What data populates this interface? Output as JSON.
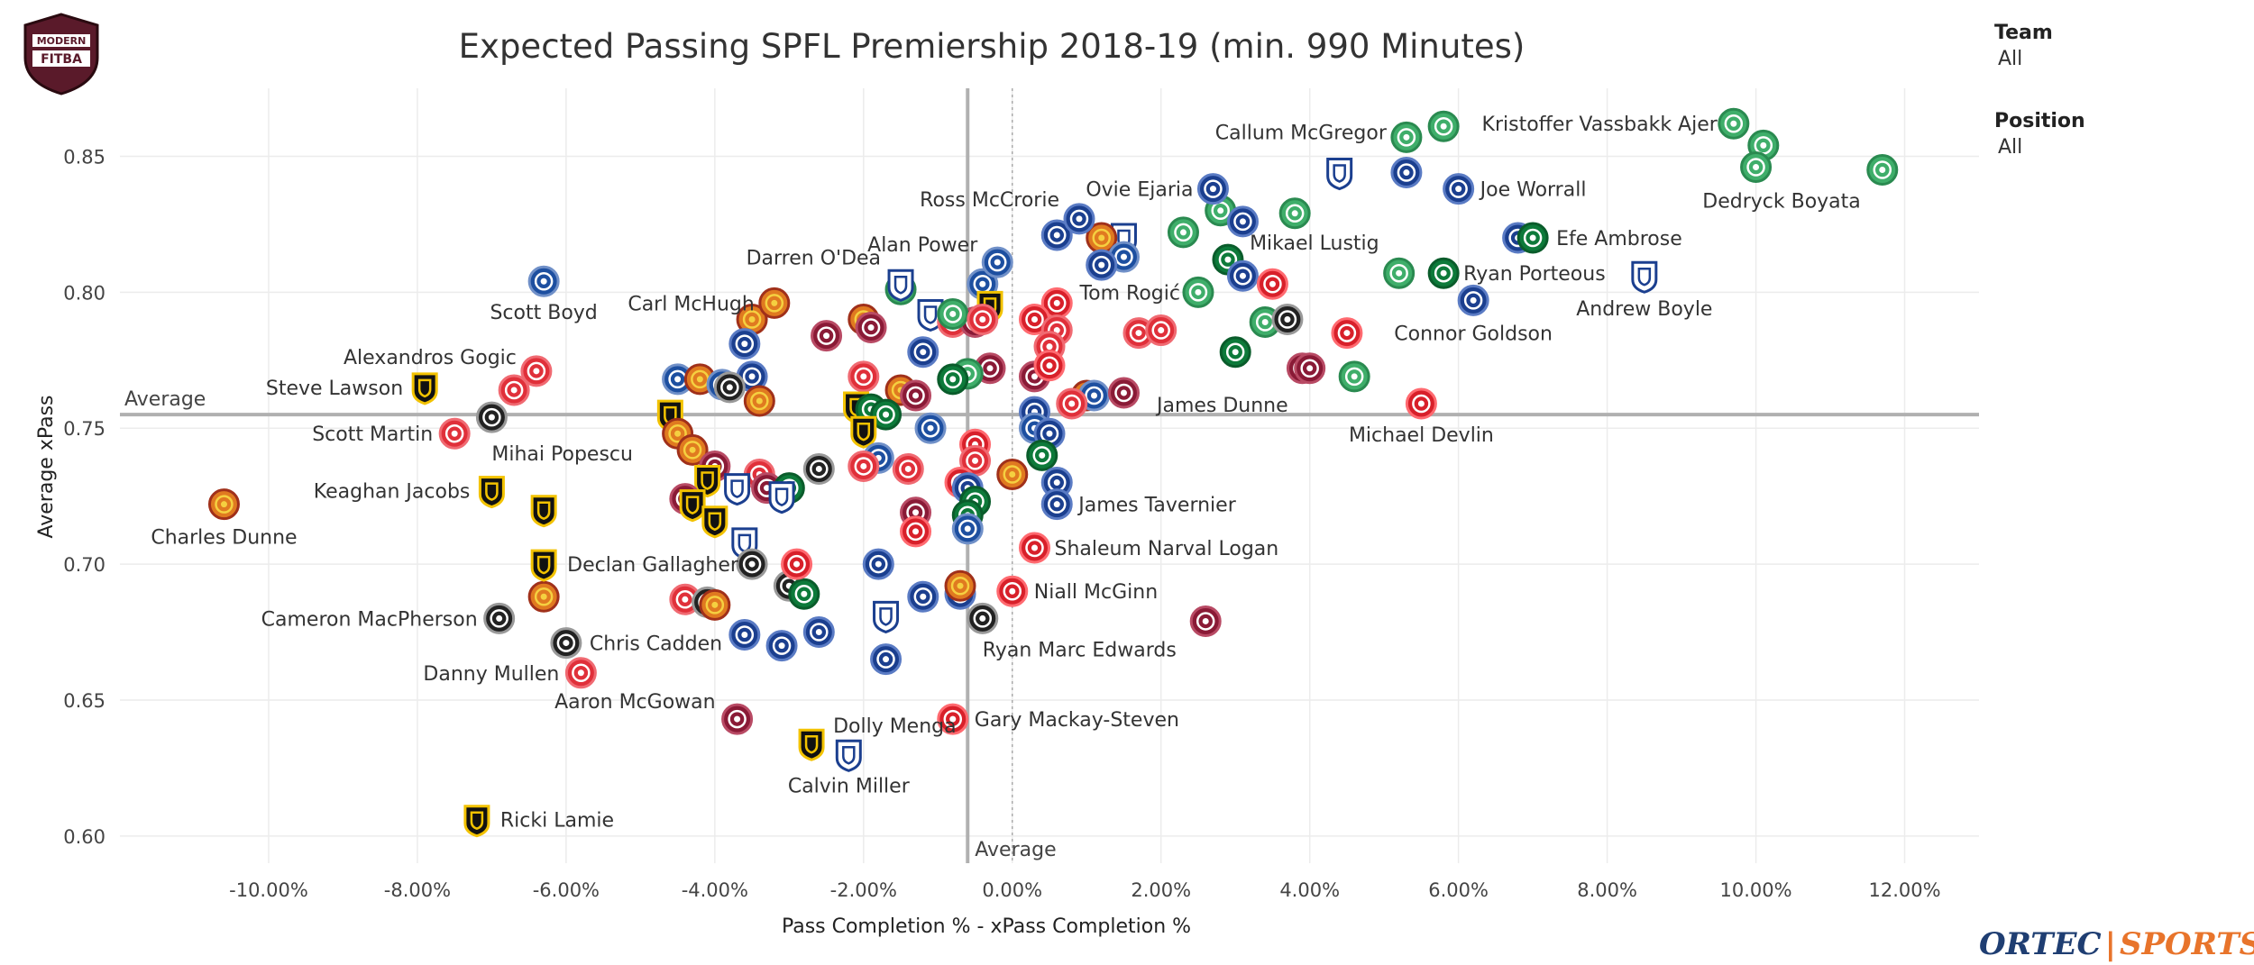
{
  "chart_data": {
    "type": "scatter",
    "title": "Expected Passing SPFL Premiership 2018-19 (min. 990 Minutes)",
    "xlabel": "Pass Completion % - xPass Completion %",
    "ylabel": "Average xPass",
    "xlim": [
      -12.0,
      13.0
    ],
    "ylim": [
      0.59,
      0.875
    ],
    "x_ticks": [
      "-10.00%",
      "-8.00%",
      "-6.00%",
      "-4.00%",
      "-2.00%",
      "0.00%",
      "2.00%",
      "4.00%",
      "6.00%",
      "8.00%",
      "10.00%",
      "12.00%"
    ],
    "x_tick_values": [
      -10,
      -8,
      -6,
      -4,
      -2,
      0,
      2,
      4,
      6,
      8,
      10,
      12
    ],
    "y_ticks": [
      "0.60",
      "0.65",
      "0.70",
      "0.75",
      "0.80",
      "0.85"
    ],
    "y_tick_values": [
      0.6,
      0.65,
      0.7,
      0.75,
      0.8,
      0.85
    ],
    "average_x": -0.6,
    "average_y": 0.755,
    "average_label": "Average",
    "labeled_points": [
      {
        "name": "Kristoffer Vassbakk Ajer",
        "x": 9.7,
        "y": 0.862,
        "team": "celtic"
      },
      {
        "name": "Dedryck Boyata",
        "x": 11.7,
        "y": 0.845,
        "team": "celtic"
      },
      {
        "name": "Callum McGregor",
        "x": 5.3,
        "y": 0.857,
        "team": "celtic"
      },
      {
        "name": "Joe Worrall",
        "x": 6.0,
        "y": 0.838,
        "team": "rangers"
      },
      {
        "name": "Efe Ambrose",
        "x": 7.0,
        "y": 0.82,
        "team": "hibernian"
      },
      {
        "name": "Mikael Lustig",
        "x": 5.2,
        "y": 0.807,
        "team": "celtic"
      },
      {
        "name": "Ryan Porteous",
        "x": 5.8,
        "y": 0.807,
        "team": "hibernian"
      },
      {
        "name": "Andrew Boyle",
        "x": 8.5,
        "y": 0.806,
        "team": "dundee"
      },
      {
        "name": "Connor Goldson",
        "x": 6.2,
        "y": 0.797,
        "team": "rangers"
      },
      {
        "name": "Ovie Ejaria",
        "x": 2.7,
        "y": 0.838,
        "team": "rangers"
      },
      {
        "name": "Ross McCrorie",
        "x": 0.9,
        "y": 0.827,
        "team": "rangers"
      },
      {
        "name": "Alan Power",
        "x": -0.2,
        "y": 0.811,
        "team": "kilmarnock"
      },
      {
        "name": "Darren O'Dea",
        "x": -1.5,
        "y": 0.803,
        "team": "dundee"
      },
      {
        "name": "Tom Rogić",
        "x": 2.5,
        "y": 0.8,
        "team": "celtic"
      },
      {
        "name": "Carl McHugh",
        "x": -3.2,
        "y": 0.796,
        "team": "motherwell"
      },
      {
        "name": "Scott Boyd",
        "x": -6.3,
        "y": 0.804,
        "team": "kilmarnock"
      },
      {
        "name": "Alexandros Gogic",
        "x": -6.4,
        "y": 0.771,
        "team": "hamilton"
      },
      {
        "name": "Steve Lawson",
        "x": -7.9,
        "y": 0.765,
        "team": "livingston"
      },
      {
        "name": "Scott Martin",
        "x": -7.5,
        "y": 0.748,
        "team": "hamilton"
      },
      {
        "name": "Mihai Popescu",
        "x": -7.0,
        "y": 0.754,
        "team": "stmirren"
      },
      {
        "name": "Keaghan Jacobs",
        "x": -7.0,
        "y": 0.727,
        "team": "livingston"
      },
      {
        "name": "Charles Dunne",
        "x": -10.6,
        "y": 0.722,
        "team": "motherwell"
      },
      {
        "name": "James Dunne",
        "x": 4.0,
        "y": 0.772,
        "team": "hearts"
      },
      {
        "name": "Michael Devlin",
        "x": 5.5,
        "y": 0.759,
        "team": "aberdeen"
      },
      {
        "name": "James Tavernier",
        "x": 0.6,
        "y": 0.722,
        "team": "rangers"
      },
      {
        "name": "Shaleum Narval Logan",
        "x": 0.3,
        "y": 0.706,
        "team": "aberdeen"
      },
      {
        "name": "Niall McGinn",
        "x": 0.0,
        "y": 0.69,
        "team": "aberdeen"
      },
      {
        "name": "Ryan Marc Edwards",
        "x": -0.4,
        "y": 0.68,
        "team": "stmirren"
      },
      {
        "name": "Declan Gallagher",
        "x": -6.3,
        "y": 0.7,
        "team": "livingston"
      },
      {
        "name": "Cameron MacPherson",
        "x": -6.9,
        "y": 0.68,
        "team": "stmirren"
      },
      {
        "name": "Chris Cadden",
        "x": -6.0,
        "y": 0.671,
        "team": "stmirren"
      },
      {
        "name": "Danny Mullen",
        "x": -5.8,
        "y": 0.66,
        "team": "hamilton"
      },
      {
        "name": "Aaron McGowan",
        "x": -3.7,
        "y": 0.643,
        "team": "hearts"
      },
      {
        "name": "Dolly Menga",
        "x": -2.7,
        "y": 0.634,
        "team": "livingston"
      },
      {
        "name": "Gary Mackay-Steven",
        "x": -0.8,
        "y": 0.643,
        "team": "aberdeen"
      },
      {
        "name": "Calvin Miller",
        "x": -2.2,
        "y": 0.63,
        "team": "dundee"
      },
      {
        "name": "Ricki Lamie",
        "x": -7.2,
        "y": 0.606,
        "team": "livingston"
      }
    ],
    "other_points": [
      {
        "x": 5.8,
        "y": 0.861,
        "team": "celtic"
      },
      {
        "x": 10.1,
        "y": 0.854,
        "team": "celtic"
      },
      {
        "x": 10.0,
        "y": 0.846,
        "team": "celtic"
      },
      {
        "x": 5.3,
        "y": 0.844,
        "team": "rangers"
      },
      {
        "x": 4.4,
        "y": 0.844,
        "team": "dundee"
      },
      {
        "x": 2.8,
        "y": 0.83,
        "team": "celtic"
      },
      {
        "x": 3.8,
        "y": 0.829,
        "team": "celtic"
      },
      {
        "x": 3.1,
        "y": 0.826,
        "team": "rangers"
      },
      {
        "x": 2.3,
        "y": 0.822,
        "team": "celtic"
      },
      {
        "x": 1.5,
        "y": 0.82,
        "team": "dundee"
      },
      {
        "x": 1.2,
        "y": 0.82,
        "team": "motherwell"
      },
      {
        "x": 0.6,
        "y": 0.821,
        "team": "rangers"
      },
      {
        "x": 6.8,
        "y": 0.82,
        "team": "rangers"
      },
      {
        "x": 2.9,
        "y": 0.812,
        "team": "hibernian"
      },
      {
        "x": 1.5,
        "y": 0.813,
        "team": "kilmarnock"
      },
      {
        "x": 1.2,
        "y": 0.81,
        "team": "rangers"
      },
      {
        "x": 3.1,
        "y": 0.806,
        "team": "rangers"
      },
      {
        "x": 3.5,
        "y": 0.803,
        "team": "aberdeen"
      },
      {
        "x": -0.4,
        "y": 0.803,
        "team": "kilmarnock"
      },
      {
        "x": -1.5,
        "y": 0.801,
        "team": "celtic"
      },
      {
        "x": 0.6,
        "y": 0.796,
        "team": "aberdeen"
      },
      {
        "x": -0.3,
        "y": 0.795,
        "team": "livingston"
      },
      {
        "x": -1.1,
        "y": 0.792,
        "team": "dundee"
      },
      {
        "x": 0.3,
        "y": 0.79,
        "team": "aberdeen"
      },
      {
        "x": -0.8,
        "y": 0.789,
        "team": "hamilton"
      },
      {
        "x": -0.5,
        "y": 0.789,
        "team": "hearts"
      },
      {
        "x": -0.8,
        "y": 0.792,
        "team": "celtic"
      },
      {
        "x": -0.4,
        "y": 0.79,
        "team": "hamilton"
      },
      {
        "x": -3.5,
        "y": 0.79,
        "team": "motherwell"
      },
      {
        "x": -2.0,
        "y": 0.79,
        "team": "motherwell"
      },
      {
        "x": -1.9,
        "y": 0.787,
        "team": "hearts"
      },
      {
        "x": 0.6,
        "y": 0.786,
        "team": "hamilton"
      },
      {
        "x": 1.7,
        "y": 0.785,
        "team": "hamilton"
      },
      {
        "x": 2.0,
        "y": 0.786,
        "team": "hamilton"
      },
      {
        "x": 3.4,
        "y": 0.789,
        "team": "celtic"
      },
      {
        "x": 3.7,
        "y": 0.79,
        "team": "stmirren"
      },
      {
        "x": 4.5,
        "y": 0.785,
        "team": "aberdeen"
      },
      {
        "x": 0.5,
        "y": 0.78,
        "team": "hamilton"
      },
      {
        "x": -2.5,
        "y": 0.784,
        "team": "hearts"
      },
      {
        "x": -3.6,
        "y": 0.781,
        "team": "rangers"
      },
      {
        "x": -1.2,
        "y": 0.778,
        "team": "rangers"
      },
      {
        "x": 3.0,
        "y": 0.778,
        "team": "hibernian"
      },
      {
        "x": 3.9,
        "y": 0.772,
        "team": "hearts"
      },
      {
        "x": 4.6,
        "y": 0.769,
        "team": "celtic"
      },
      {
        "x": -0.3,
        "y": 0.772,
        "team": "hearts"
      },
      {
        "x": 0.3,
        "y": 0.769,
        "team": "hearts"
      },
      {
        "x": 0.5,
        "y": 0.773,
        "team": "aberdeen"
      },
      {
        "x": -0.6,
        "y": 0.77,
        "team": "celtic"
      },
      {
        "x": -0.8,
        "y": 0.768,
        "team": "hibernian"
      },
      {
        "x": -2.0,
        "y": 0.769,
        "team": "hamilton"
      },
      {
        "x": -3.5,
        "y": 0.769,
        "team": "rangers"
      },
      {
        "x": -4.5,
        "y": 0.768,
        "team": "kilmarnock"
      },
      {
        "x": -4.2,
        "y": 0.768,
        "team": "motherwell"
      },
      {
        "x": -3.9,
        "y": 0.766,
        "team": "kilmarnock"
      },
      {
        "x": -3.8,
        "y": 0.765,
        "team": "stmirren"
      },
      {
        "x": -1.5,
        "y": 0.764,
        "team": "motherwell"
      },
      {
        "x": -6.7,
        "y": 0.764,
        "team": "hamilton"
      },
      {
        "x": -3.4,
        "y": 0.76,
        "team": "motherwell"
      },
      {
        "x": -1.3,
        "y": 0.762,
        "team": "hearts"
      },
      {
        "x": -2.1,
        "y": 0.758,
        "team": "livingston"
      },
      {
        "x": -1.9,
        "y": 0.757,
        "team": "hibernian"
      },
      {
        "x": -1.7,
        "y": 0.755,
        "team": "hibernian"
      },
      {
        "x": 1.0,
        "y": 0.762,
        "team": "motherwell"
      },
      {
        "x": 1.1,
        "y": 0.762,
        "team": "kilmarnock"
      },
      {
        "x": 1.5,
        "y": 0.763,
        "team": "hearts"
      },
      {
        "x": 0.8,
        "y": 0.759,
        "team": "hamilton"
      },
      {
        "x": 0.3,
        "y": 0.756,
        "team": "rangers"
      },
      {
        "x": -4.6,
        "y": 0.755,
        "team": "livingston"
      },
      {
        "x": -1.1,
        "y": 0.75,
        "team": "kilmarnock"
      },
      {
        "x": -2.0,
        "y": 0.749,
        "team": "livingston"
      },
      {
        "x": 0.3,
        "y": 0.75,
        "team": "kilmarnock"
      },
      {
        "x": 0.5,
        "y": 0.748,
        "team": "rangers"
      },
      {
        "x": -4.5,
        "y": 0.748,
        "team": "motherwell"
      },
      {
        "x": -4.3,
        "y": 0.742,
        "team": "motherwell"
      },
      {
        "x": -0.5,
        "y": 0.744,
        "team": "aberdeen"
      },
      {
        "x": 0.4,
        "y": 0.74,
        "team": "hibernian"
      },
      {
        "x": -1.8,
        "y": 0.739,
        "team": "kilmarnock"
      },
      {
        "x": -2.0,
        "y": 0.736,
        "team": "hamilton"
      },
      {
        "x": -1.4,
        "y": 0.735,
        "team": "hamilton"
      },
      {
        "x": -0.5,
        "y": 0.738,
        "team": "hamilton"
      },
      {
        "x": -4.0,
        "y": 0.736,
        "team": "hearts"
      },
      {
        "x": -2.6,
        "y": 0.735,
        "team": "stmirren"
      },
      {
        "x": -3.4,
        "y": 0.733,
        "team": "hamilton"
      },
      {
        "x": -3.3,
        "y": 0.728,
        "team": "hearts"
      },
      {
        "x": -3.0,
        "y": 0.728,
        "team": "hibernian"
      },
      {
        "x": -4.1,
        "y": 0.731,
        "team": "livingston"
      },
      {
        "x": -3.7,
        "y": 0.728,
        "team": "dundee"
      },
      {
        "x": -3.1,
        "y": 0.725,
        "team": "dundee"
      },
      {
        "x": 0.0,
        "y": 0.733,
        "team": "motherwell"
      },
      {
        "x": 0.6,
        "y": 0.73,
        "team": "rangers"
      },
      {
        "x": -0.7,
        "y": 0.73,
        "team": "aberdeen"
      },
      {
        "x": -0.6,
        "y": 0.728,
        "team": "rangers"
      },
      {
        "x": -4.4,
        "y": 0.724,
        "team": "hearts"
      },
      {
        "x": -4.3,
        "y": 0.722,
        "team": "livingston"
      },
      {
        "x": -4.0,
        "y": 0.716,
        "team": "livingston"
      },
      {
        "x": -6.3,
        "y": 0.72,
        "team": "livingston"
      },
      {
        "x": -1.3,
        "y": 0.719,
        "team": "hearts"
      },
      {
        "x": -0.5,
        "y": 0.723,
        "team": "hibernian"
      },
      {
        "x": -0.6,
        "y": 0.718,
        "team": "hibernian"
      },
      {
        "x": -1.3,
        "y": 0.712,
        "team": "aberdeen"
      },
      {
        "x": -0.6,
        "y": 0.713,
        "team": "kilmarnock"
      },
      {
        "x": -3.6,
        "y": 0.708,
        "team": "dundee"
      },
      {
        "x": -3.5,
        "y": 0.7,
        "team": "stmirren"
      },
      {
        "x": -3.0,
        "y": 0.692,
        "team": "stmirren"
      },
      {
        "x": -2.8,
        "y": 0.689,
        "team": "hibernian"
      },
      {
        "x": -2.9,
        "y": 0.7,
        "team": "aberdeen"
      },
      {
        "x": -1.8,
        "y": 0.7,
        "team": "rangers"
      },
      {
        "x": -4.4,
        "y": 0.687,
        "team": "hamilton"
      },
      {
        "x": -4.1,
        "y": 0.686,
        "team": "stmirren"
      },
      {
        "x": -4.0,
        "y": 0.685,
        "team": "motherwell"
      },
      {
        "x": -6.3,
        "y": 0.688,
        "team": "motherwell"
      },
      {
        "x": -1.2,
        "y": 0.688,
        "team": "rangers"
      },
      {
        "x": -0.7,
        "y": 0.689,
        "team": "rangers"
      },
      {
        "x": -0.7,
        "y": 0.692,
        "team": "motherwell"
      },
      {
        "x": -1.7,
        "y": 0.681,
        "team": "dundee"
      },
      {
        "x": -3.6,
        "y": 0.674,
        "team": "rangers"
      },
      {
        "x": -3.1,
        "y": 0.67,
        "team": "rangers"
      },
      {
        "x": -2.6,
        "y": 0.675,
        "team": "rangers"
      },
      {
        "x": -1.7,
        "y": 0.665,
        "team": "rangers"
      },
      {
        "x": 2.6,
        "y": 0.679,
        "team": "hearts"
      }
    ]
  },
  "panel": {
    "team_label": "Team",
    "team_value": "All",
    "position_label": "Position",
    "position_value": "All"
  },
  "logos": {
    "left_line1": "MODERN",
    "left_line2": "FITBA",
    "brand_main": "ORTEC",
    "brand_sub": "SPORTS"
  },
  "team_colors": {
    "celtic": {
      "bg": "#3fae6a",
      "ring": "#2a8a50",
      "inner": "#ffffff",
      "kind": "circle"
    },
    "rangers": {
      "bg": "#1b3f8f",
      "ring": "#5a7bc4",
      "inner": "#ffffff",
      "kind": "circle"
    },
    "hibernian": {
      "bg": "#0d7a3a",
      "ring": "#0a5c2b",
      "inner": "#ffffff",
      "kind": "circle"
    },
    "hearts": {
      "bg": "#8a1a36",
      "ring": "#b84a64",
      "inner": "#ffffff",
      "kind": "circle"
    },
    "hamilton": {
      "bg": "#e0303a",
      "ring": "#f06a72",
      "inner": "#ffffff",
      "kind": "circle"
    },
    "aberdeen": {
      "bg": "#d8202a",
      "ring": "#ff6a70",
      "inner": "#ffffff",
      "kind": "circle"
    },
    "motherwell": {
      "bg": "#e07a20",
      "ring": "#a0301a",
      "inner": "#f5d040",
      "kind": "circle"
    },
    "kilmarnock": {
      "bg": "#1d4fa0",
      "ring": "#7090c8",
      "inner": "#ffffff",
      "kind": "circle"
    },
    "stmirren": {
      "bg": "#222222",
      "ring": "#999999",
      "inner": "#ffffff",
      "kind": "circle"
    },
    "dundee": {
      "bg": "#ffffff",
      "ring": "#1b3f8f",
      "inner": "#1b3f8f",
      "kind": "shield"
    },
    "livingston": {
      "bg": "#111111",
      "ring": "#f2c200",
      "inner": "#f2c200",
      "kind": "shield"
    }
  }
}
